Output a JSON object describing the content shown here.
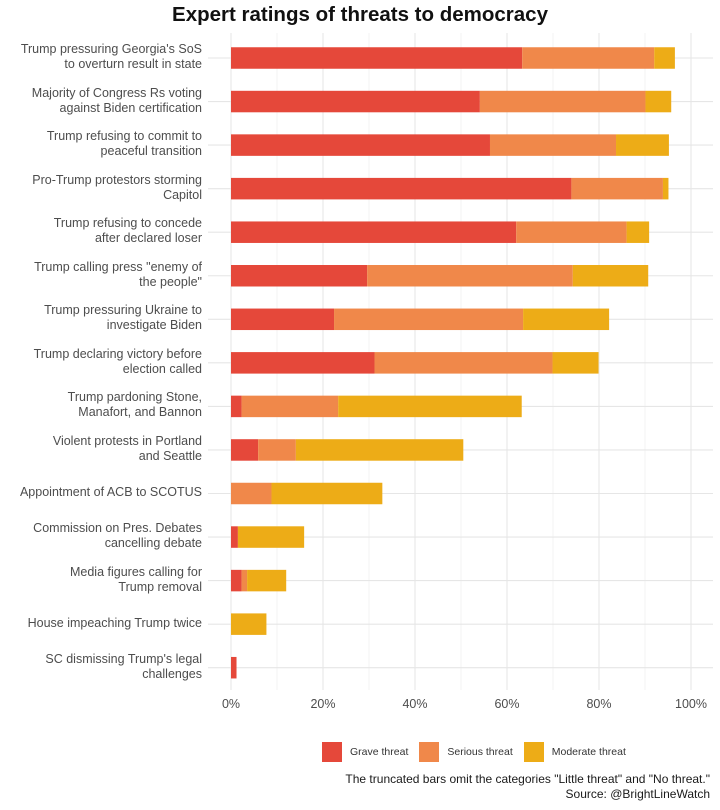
{
  "chart_data": {
    "type": "bar",
    "orientation": "horizontal",
    "stacked": true,
    "title": "Expert ratings of threats to democracy",
    "xlabel": "",
    "ylabel": "",
    "xlim": [
      0,
      100
    ],
    "x_ticks": [
      "0%",
      "20%",
      "40%",
      "60%",
      "80%",
      "100%"
    ],
    "x_tick_values": [
      0,
      20,
      40,
      60,
      80,
      100
    ],
    "grid": true,
    "legend_position": "bottom",
    "categories": [
      "Trump pressuring Georgia's SoS\nto overturn result in state",
      "Majority of Congress Rs voting\nagainst Biden certification",
      "Trump refusing to commit to\npeaceful transition",
      "Pro-Trump protestors storming\nCapitol",
      "Trump refusing to concede\nafter declared loser",
      "Trump calling press \"enemy of\nthe people\"",
      "Trump pressuring Ukraine to\ninvestigate Biden",
      "Trump declaring victory before\nelection called",
      "Trump pardoning Stone,\nManafort, and Bannon",
      "Violent protests in Portland\nand Seattle",
      "Appointment of ACB to SCOTUS",
      "Commission on Pres. Debates\ncancelling debate",
      "Media figures calling for\nTrump removal",
      "House impeaching Trump twice",
      "SC dismissing Trump's legal\nchallenges"
    ],
    "series": [
      {
        "name": "Grave threat",
        "color": "#E5483A",
        "values": [
          63.3,
          54.1,
          56.3,
          74.0,
          62.0,
          29.6,
          22.4,
          31.2,
          2.3,
          5.9,
          0,
          1.5,
          2.3,
          0,
          1.2
        ]
      },
      {
        "name": "Serious threat",
        "color": "#F0884A",
        "values": [
          28.7,
          36.0,
          27.4,
          19.9,
          24.0,
          44.7,
          41.1,
          38.7,
          21.0,
          8.2,
          8.8,
          0,
          1.2,
          0,
          0
        ]
      },
      {
        "name": "Moderate threat",
        "color": "#EDAC17",
        "values": [
          4.5,
          5.6,
          11.5,
          1.2,
          4.9,
          16.4,
          18.7,
          10.0,
          39.9,
          36.4,
          24.1,
          14.4,
          8.5,
          7.7,
          0
        ]
      }
    ],
    "caption": [
      "The truncated bars omit the categories \"Little threat\" and \"No threat.\"",
      "Source: @BrightLineWatch"
    ]
  }
}
